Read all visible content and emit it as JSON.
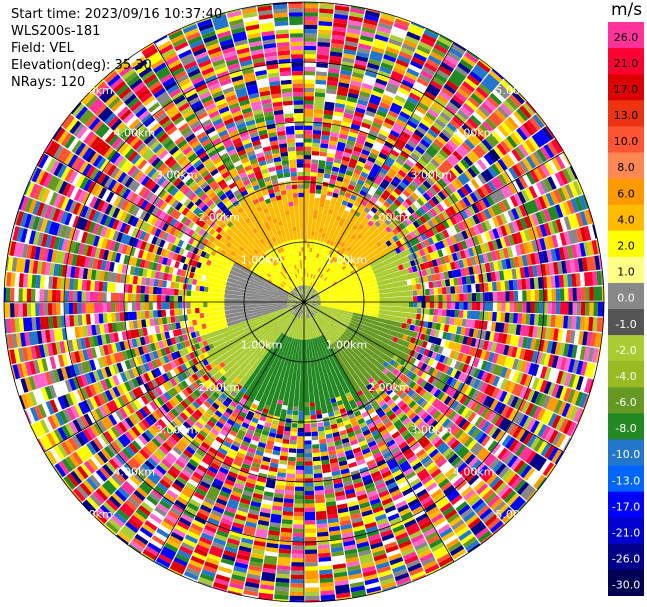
{
  "header": {
    "lines": [
      "Start time: 2023/09/16 10:37:40",
      "WLS200s-181",
      "Field: VEL",
      "Elevation(deg): 35.30",
      "NRays: 120"
    ]
  },
  "colorbar": {
    "unit": "m/s",
    "ticks": [
      "26.0",
      "21.0",
      "17.0",
      "13.0",
      "10.0",
      "8.0",
      "6.0",
      "4.0",
      "2.0",
      "1.0",
      "0.0",
      "-1.0",
      "-2.0",
      "-4.0",
      "-6.0",
      "-8.0",
      "-10.0",
      "-13.0",
      "-17.0",
      "-21.0",
      "-26.0",
      "-30.0"
    ],
    "colors": [
      "#ff3399",
      "#ff0033",
      "#dd0000",
      "#ee3311",
      "#ff5533",
      "#ff8855",
      "#ff9900",
      "#ffbb00",
      "#ffff00",
      "#ffff88",
      "#888888",
      "#555555",
      "#aacc33",
      "#99bb22",
      "#669922",
      "#228822",
      "#2277cc",
      "#0066ff",
      "#0000ff",
      "#0000cc",
      "#000088",
      "#000055",
      "#111144"
    ]
  },
  "chart_data": {
    "type": "ppi_scan",
    "field": "VEL",
    "nrays": 120,
    "range_ring_labels": [
      "1.00km",
      "2.00km",
      "3.00km",
      "4.00km",
      "5.00km"
    ],
    "range_rings_km": [
      1,
      2,
      3,
      4,
      5
    ],
    "max_range_km": 5,
    "clean_core_km": 2.1
  }
}
